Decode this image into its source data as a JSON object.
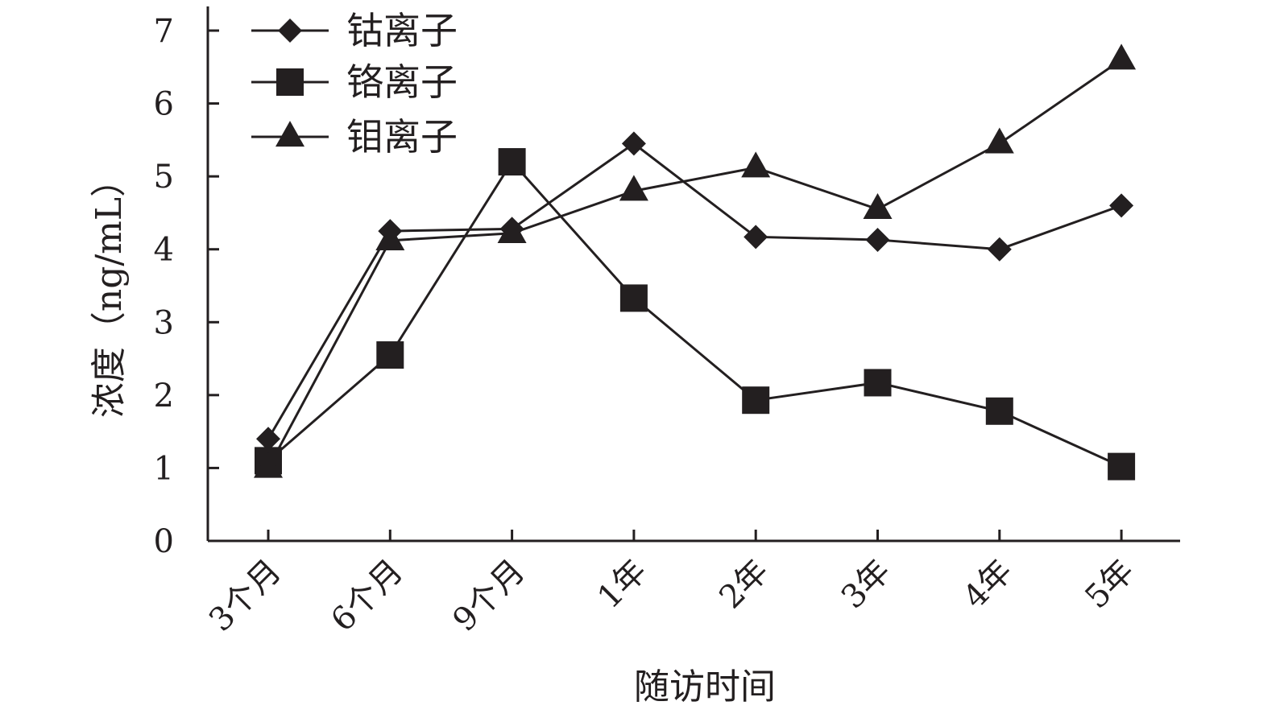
{
  "chart_data": {
    "type": "line",
    "categories": [
      "3个月",
      "6个月",
      "9个月",
      "1年",
      "2年",
      "3年",
      "4年",
      "5年"
    ],
    "series": [
      {
        "name": "钴离子",
        "marker": "diamond",
        "values": [
          1.4,
          4.25,
          4.28,
          5.45,
          4.17,
          4.13,
          4.0,
          4.6
        ]
      },
      {
        "name": "铬离子",
        "marker": "square",
        "values": [
          1.1,
          2.55,
          5.2,
          3.33,
          1.93,
          2.17,
          1.78,
          1.02
        ]
      },
      {
        "name": "钼离子",
        "marker": "triangle",
        "values": [
          1.0,
          4.12,
          4.22,
          4.8,
          5.12,
          4.55,
          5.45,
          6.6
        ]
      }
    ],
    "xlabel": "随访时间",
    "ylabel": "浓度（ng/mL）",
    "ylim": [
      0,
      7
    ],
    "yticks": [
      "0",
      "1",
      "2",
      "3",
      "4",
      "5",
      "6",
      "7"
    ],
    "grid": false,
    "legend_position": "top-left",
    "line_color": "#231f20"
  }
}
